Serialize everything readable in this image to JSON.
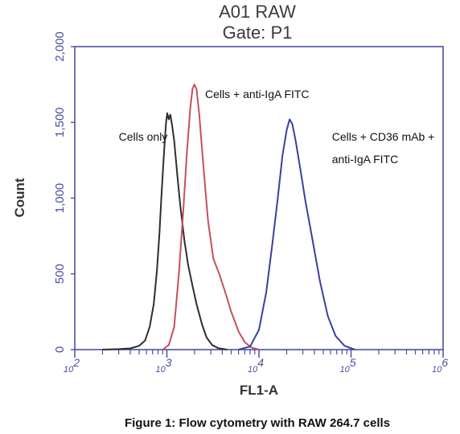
{
  "chart_data": {
    "type": "line",
    "title": "A01 RAW",
    "subtitle": "Gate: P1",
    "xlabel": "FL1-A",
    "ylabel": "Count",
    "x_scale": "log",
    "xlim": [
      100,
      1000000
    ],
    "ylim": [
      0,
      2000
    ],
    "y_ticks": [
      "0",
      "500",
      "1,000",
      "1,500",
      "2,000"
    ],
    "x_ticks": [
      {
        "base": "10",
        "exp": "2"
      },
      {
        "base": "10",
        "exp": "3"
      },
      {
        "base": "10",
        "exp": "4"
      },
      {
        "base": "10",
        "exp": "5"
      },
      {
        "base": "10",
        "exp": "6"
      }
    ],
    "grid": false,
    "series": [
      {
        "color": "#2e2e2e",
        "points": [
          [
            200,
            0
          ],
          [
            300,
            3
          ],
          [
            400,
            8
          ],
          [
            500,
            25
          ],
          [
            580,
            60
          ],
          [
            650,
            150
          ],
          [
            720,
            300
          ],
          [
            780,
            520
          ],
          [
            830,
            760
          ],
          [
            870,
            1000
          ],
          [
            910,
            1200
          ],
          [
            950,
            1380
          ],
          [
            980,
            1500
          ],
          [
            1010,
            1560
          ],
          [
            1050,
            1520
          ],
          [
            1090,
            1550
          ],
          [
            1140,
            1480
          ],
          [
            1200,
            1380
          ],
          [
            1300,
            1150
          ],
          [
            1400,
            950
          ],
          [
            1550,
            720
          ],
          [
            1700,
            560
          ],
          [
            1900,
            420
          ],
          [
            2100,
            300
          ],
          [
            2400,
            170
          ],
          [
            2700,
            80
          ],
          [
            3100,
            30
          ],
          [
            3600,
            10
          ],
          [
            4500,
            0
          ]
        ]
      },
      {
        "color": "#c5505f",
        "points": [
          [
            900,
            0
          ],
          [
            1050,
            30
          ],
          [
            1200,
            150
          ],
          [
            1350,
            500
          ],
          [
            1500,
            900
          ],
          [
            1650,
            1300
          ],
          [
            1800,
            1600
          ],
          [
            1900,
            1720
          ],
          [
            1980,
            1750
          ],
          [
            2100,
            1720
          ],
          [
            2250,
            1550
          ],
          [
            2500,
            1200
          ],
          [
            2800,
            850
          ],
          [
            3200,
            600
          ],
          [
            3700,
            500
          ],
          [
            4300,
            380
          ],
          [
            5000,
            250
          ],
          [
            6000,
            120
          ],
          [
            7000,
            50
          ],
          [
            8200,
            15
          ],
          [
            10000,
            0
          ]
        ]
      },
      {
        "color": "#3a3fa0",
        "points": [
          [
            6000,
            0
          ],
          [
            8000,
            20
          ],
          [
            10000,
            130
          ],
          [
            12000,
            380
          ],
          [
            14000,
            700
          ],
          [
            16000,
            1000
          ],
          [
            18000,
            1280
          ],
          [
            20000,
            1450
          ],
          [
            21500,
            1520
          ],
          [
            23000,
            1490
          ],
          [
            25000,
            1380
          ],
          [
            28000,
            1200
          ],
          [
            32000,
            980
          ],
          [
            38000,
            730
          ],
          [
            46000,
            450
          ],
          [
            56000,
            220
          ],
          [
            68000,
            90
          ],
          [
            85000,
            25
          ],
          [
            110000,
            0
          ]
        ]
      }
    ],
    "annotations": [
      {
        "text": "Cells only",
        "x": 300,
        "y": 1380
      },
      {
        "text": "Cells + anti-IgA FITC",
        "x": 2600,
        "y": 1660
      },
      {
        "text": "Cells + CD36 mAb +",
        "x": 62000,
        "y": 1380
      },
      {
        "text": "anti-IgA FITC",
        "x": 62000,
        "y": 1230
      }
    ]
  },
  "caption": "Figure 1: Flow cytometry with RAW 264.7 cells"
}
